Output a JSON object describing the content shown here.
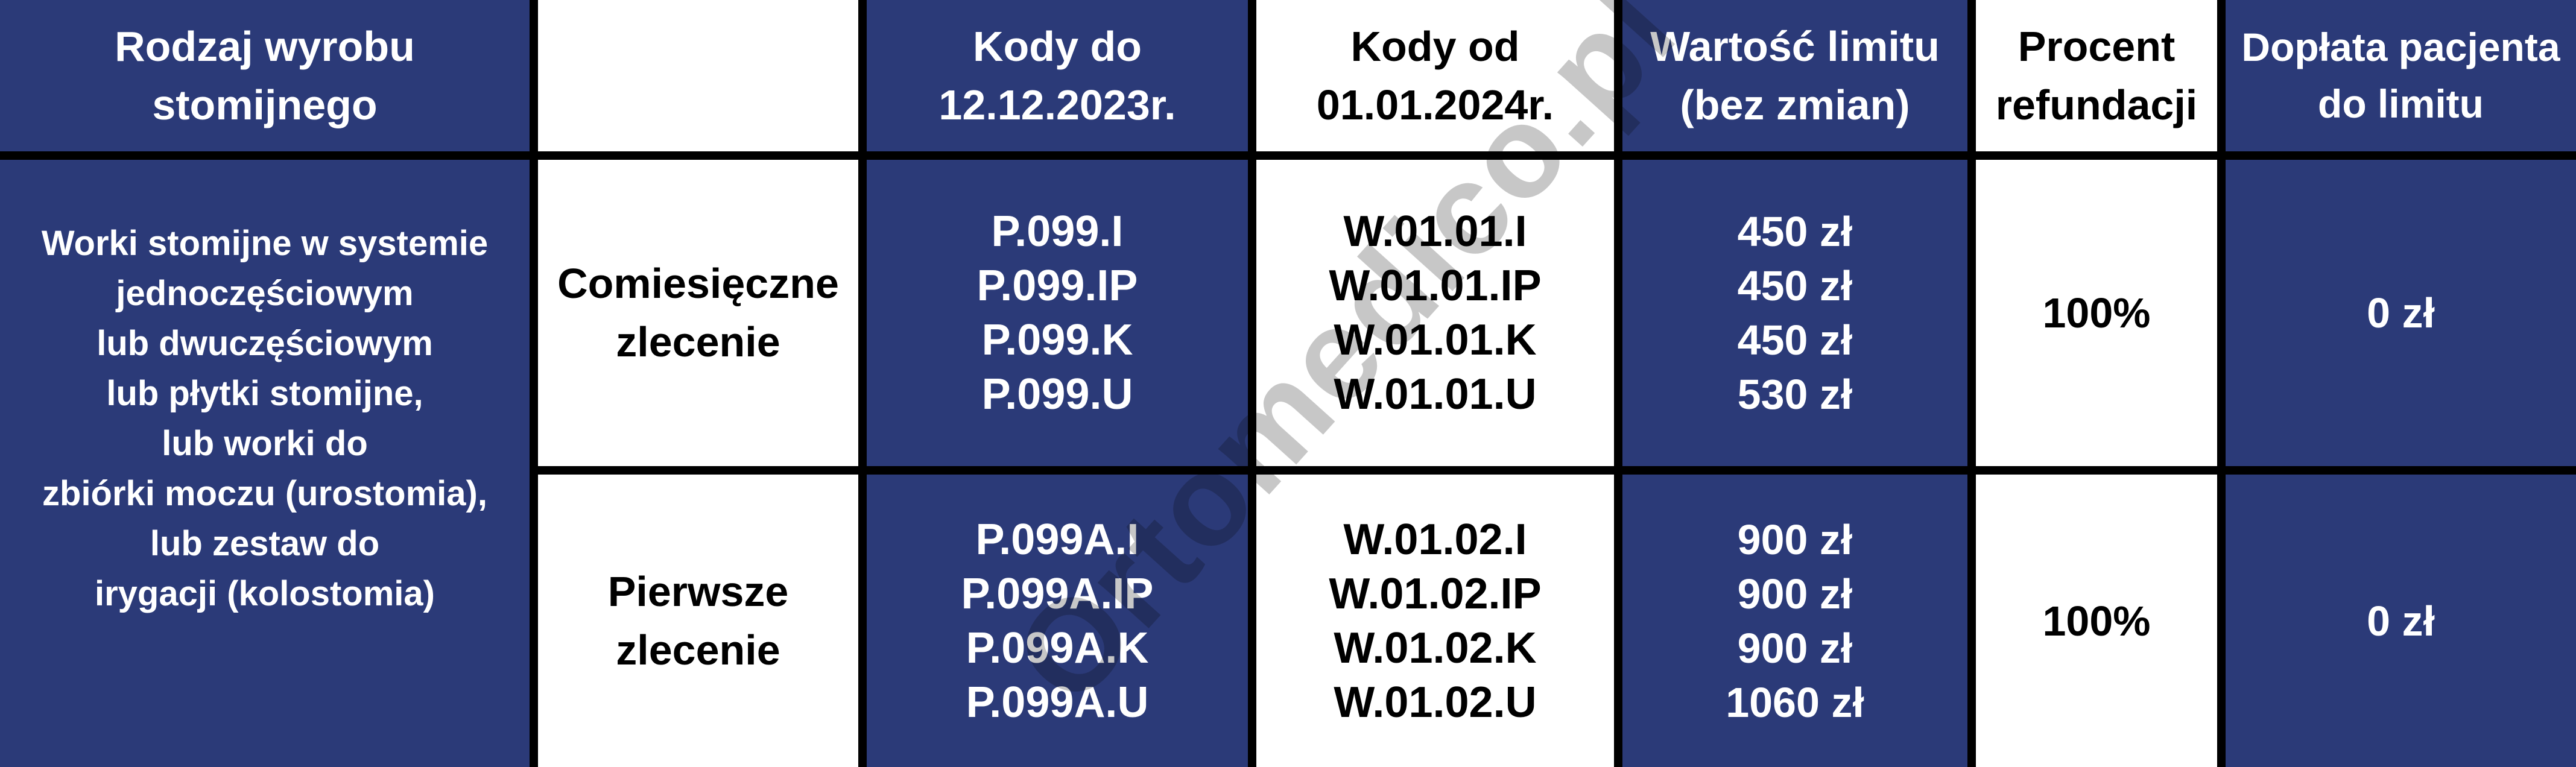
{
  "table": {
    "header": [
      "Rodzaj wyrobu\nstomijnego",
      "",
      "Kody do\n12.12.2023r.",
      "Kody od\n01.01.2024r.",
      "Wartość limitu\n(bez zmian)",
      "Procent\nrefundacji",
      "Dopłata pacjenta\ndo limitu"
    ],
    "product_group": "Worki stomijne w systemie\njednoczęściowym\nlub dwuczęściowym\nlub płytki stomijne,\nlub worki do\nzbiórki moczu (urostomia),\nlub zestaw do\nirygacji (kolostomia)",
    "rows": [
      {
        "order_type": "Comiesięczne\nzlecenie",
        "codes_old": "P.099.I\nP.099.IP\nP.099.K\nP.099.U",
        "codes_new": "W.01.01.I\nW.01.01.IP\nW.01.01.K\nW.01.01.U",
        "limit_values": "450 zł\n450 zł\n450 zł\n530 zł",
        "refund_percent": "100%",
        "patient_copay": "0 zł"
      },
      {
        "order_type": "Pierwsze\nzlecenie",
        "codes_old": "P.099A.I\nP.099A.IP\nP.099A.K\nP.099A.U",
        "codes_new": "W.01.02.I\nW.01.02.IP\nW.01.02.K\nW.01.02.U",
        "limit_values": "900 zł\n900 zł\n900 zł\n1060 zł",
        "refund_percent": "100%",
        "patient_copay": "0 zł"
      }
    ]
  },
  "watermark": "Ortomedico.pl",
  "colors": {
    "navy": "#2b3a78",
    "grid": "#000000",
    "white_cell": "#ffffff",
    "text_on_navy": "#ffffff",
    "text_on_white": "#000000"
  }
}
